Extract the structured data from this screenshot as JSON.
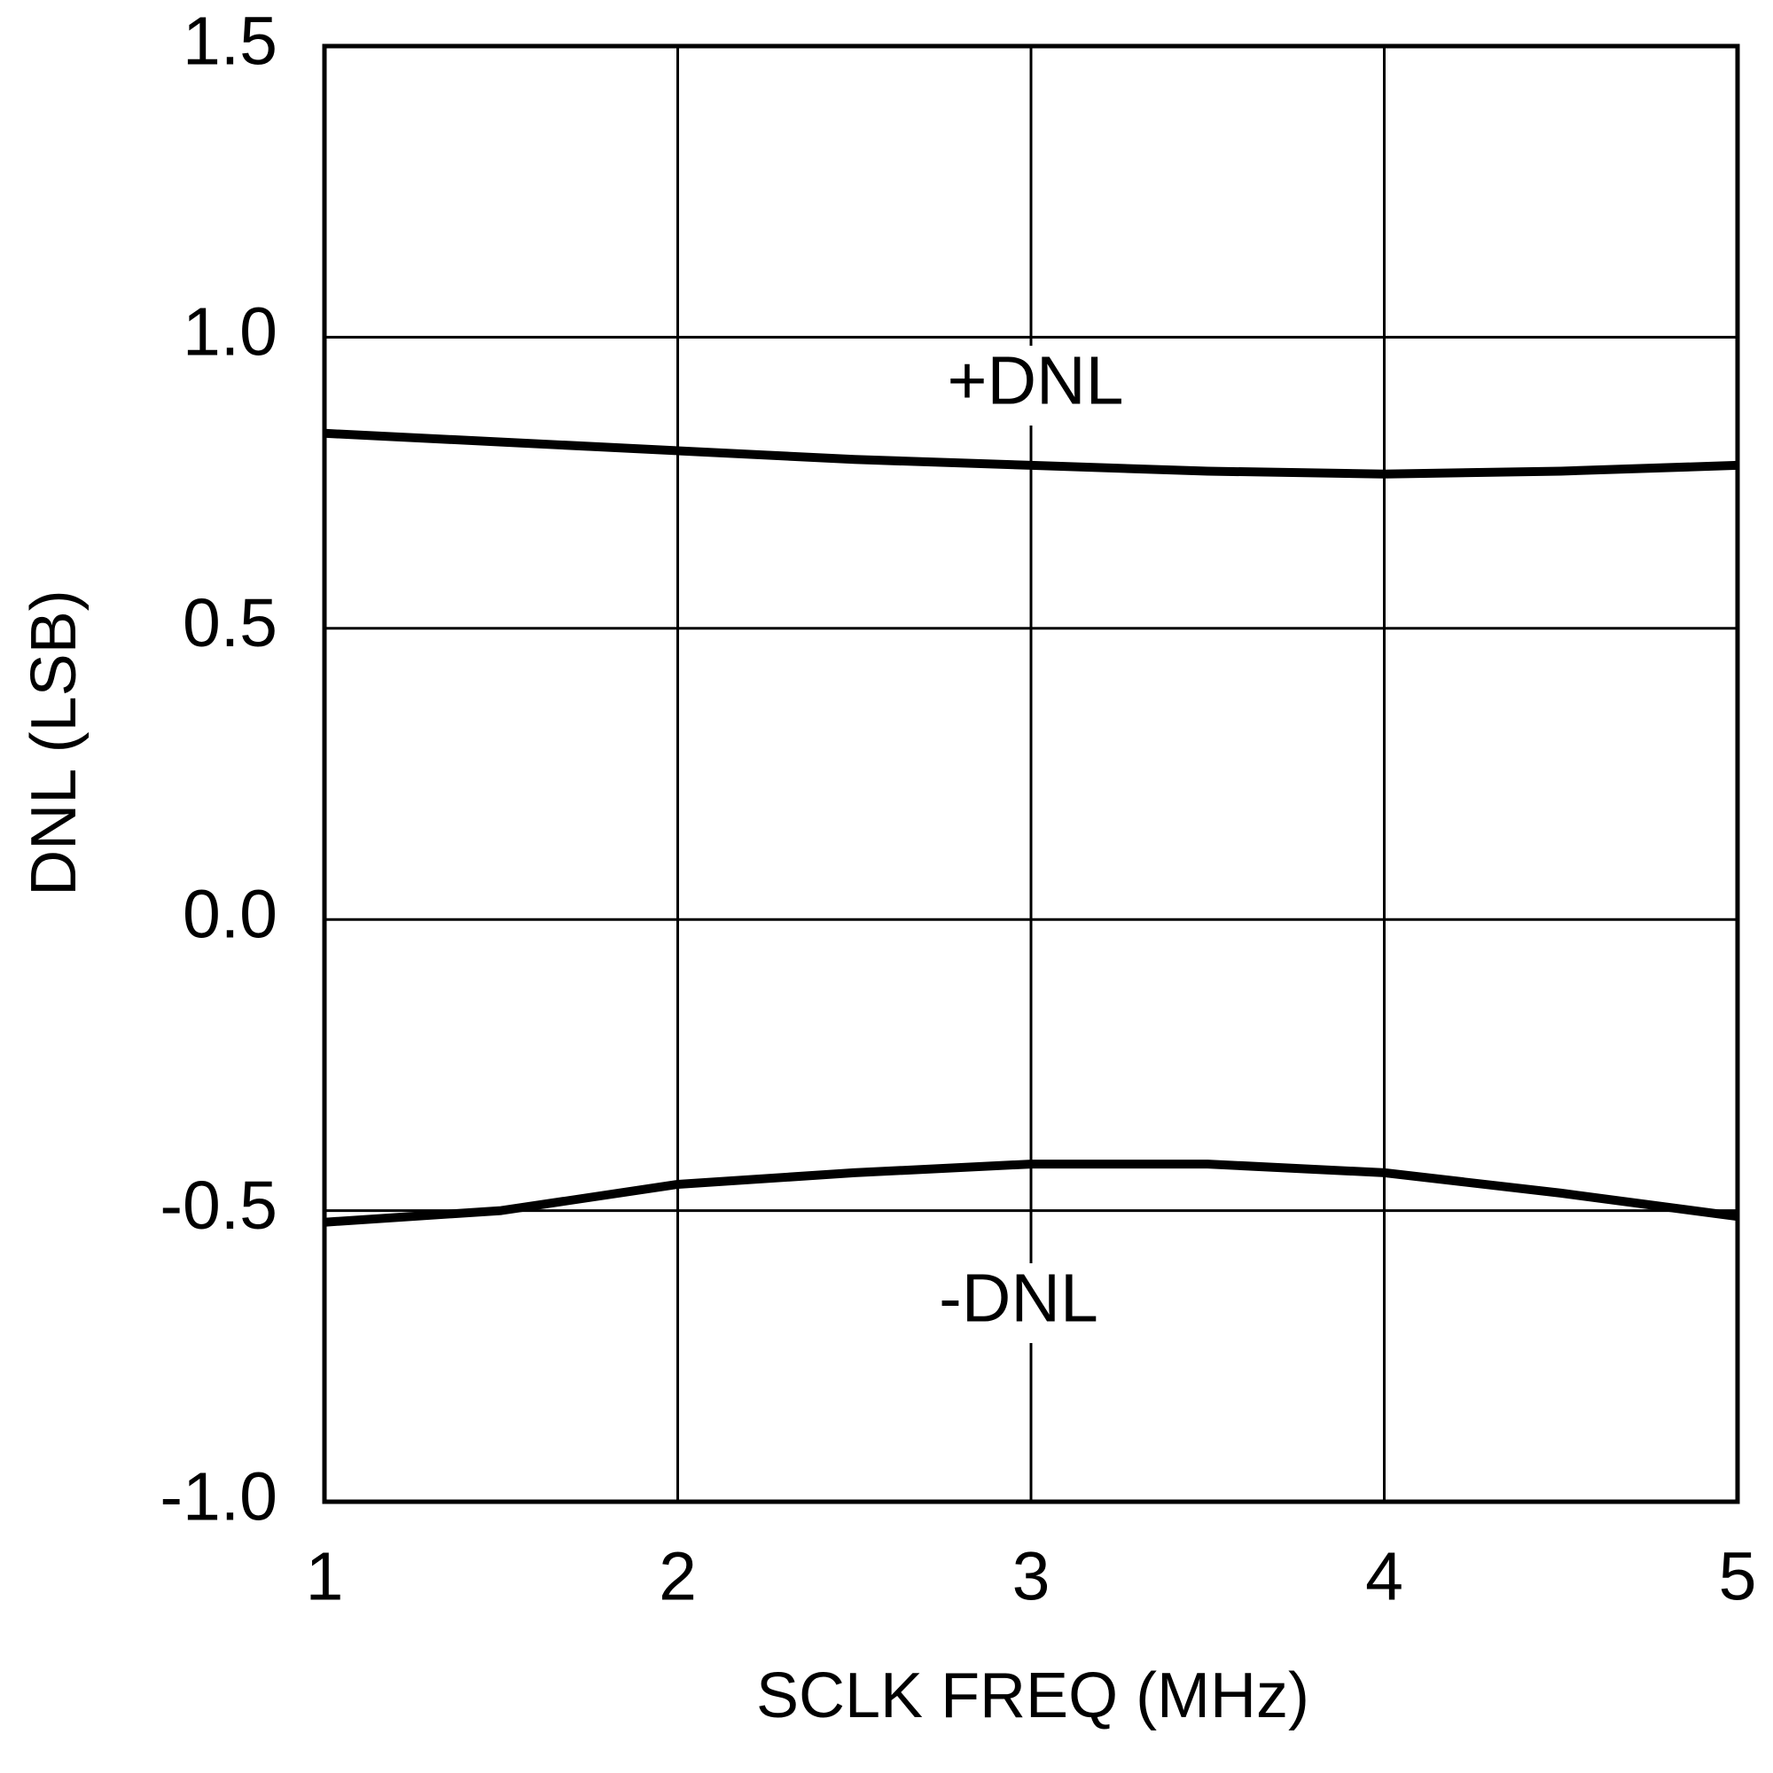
{
  "chart_data": {
    "type": "line",
    "x_label": "SCLK FREQ (MHz)",
    "y_label": "DNL (LSB)",
    "x": [
      1,
      1.5,
      2,
      2.5,
      3,
      3.5,
      4,
      4.5,
      5
    ],
    "series": [
      {
        "name": "+DNL",
        "color": "#000000",
        "values": [
          0.835,
          0.82,
          0.805,
          0.79,
          0.78,
          0.77,
          0.765,
          0.77,
          0.78
        ]
      },
      {
        "name": "-DNL",
        "color": "#000000",
        "values": [
          -0.52,
          -0.5,
          -0.455,
          -0.435,
          -0.42,
          -0.42,
          -0.435,
          -0.47,
          -0.51
        ]
      }
    ],
    "xlim": [
      1,
      5
    ],
    "xticks": [
      1,
      2,
      3,
      4,
      5
    ],
    "ylim": [
      -1,
      1.5
    ],
    "yticks": [
      {
        "value": -1,
        "label": "-1.0"
      },
      -0.5,
      {
        "value": 0,
        "label": "0.0"
      },
      0.5,
      {
        "value": 1,
        "label": "1.0"
      },
      1.5
    ],
    "grid": true
  }
}
